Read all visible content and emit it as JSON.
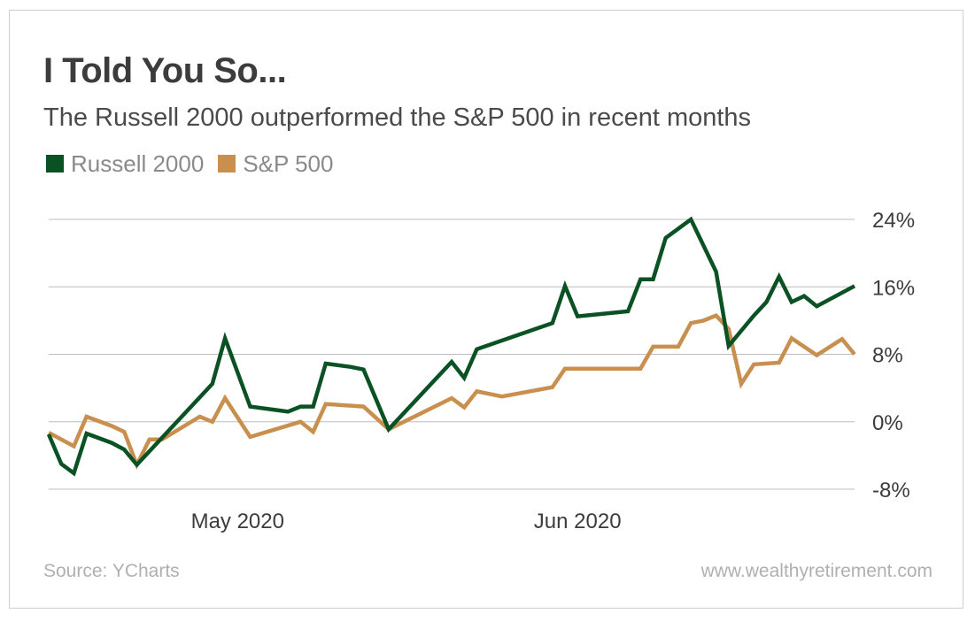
{
  "title": "I Told You So...",
  "subtitle": "The Russell 2000 outperformed the S&P 500 in recent months",
  "source": "Source: YCharts",
  "site": "www.wealthyretirement.com",
  "colors": {
    "russell": "#0a5224",
    "sp500": "#c98f4f",
    "grid": "#bdbdbd",
    "text": "#3c3c3c"
  },
  "chart_data": {
    "type": "line",
    "title": "I Told You So...",
    "subtitle": "The Russell 2000 outperformed the S&P 500 in recent months",
    "ylim": [
      -8,
      24
    ],
    "yticks": [
      24,
      16,
      8,
      0,
      -8
    ],
    "ytick_labels": [
      "24%",
      "16%",
      "8%",
      "0%",
      "-8%"
    ],
    "xlim": [
      0,
      63
    ],
    "xticks": [
      {
        "x": 15,
        "label": "May 2020"
      },
      {
        "x": 42,
        "label": "Jun 2020"
      }
    ],
    "grid": true,
    "legend": "top-left",
    "series": [
      {
        "name": "Russell 2000",
        "color": "#0a5224",
        "points": [
          [
            0,
            -1.5
          ],
          [
            1,
            -5.0
          ],
          [
            2,
            -6.1
          ],
          [
            3,
            -1.4
          ],
          [
            5,
            -2.5
          ],
          [
            6,
            -3.3
          ],
          [
            7,
            -5.1
          ],
          [
            13,
            4.5
          ],
          [
            14,
            9.9
          ],
          [
            16,
            1.8
          ],
          [
            18,
            1.4
          ],
          [
            19,
            1.2
          ],
          [
            20,
            1.8
          ],
          [
            21,
            1.8
          ],
          [
            22,
            6.9
          ],
          [
            24,
            6.5
          ],
          [
            25,
            6.2
          ],
          [
            27,
            -0.9
          ],
          [
            32,
            7.1
          ],
          [
            33,
            5.2
          ],
          [
            34,
            8.6
          ],
          [
            40,
            11.7
          ],
          [
            41,
            16.1
          ],
          [
            42,
            12.5
          ],
          [
            46,
            13.1
          ],
          [
            47,
            16.9
          ],
          [
            48,
            16.9
          ],
          [
            49,
            21.8
          ],
          [
            51,
            24.0
          ],
          [
            53,
            17.8
          ],
          [
            54,
            9.0
          ],
          [
            56,
            12.6
          ],
          [
            57,
            14.2
          ],
          [
            58,
            17.2
          ],
          [
            59,
            14.2
          ],
          [
            60,
            14.9
          ],
          [
            61,
            13.7
          ],
          [
            64,
            16.1
          ]
        ]
      },
      {
        "name": "S&P 500",
        "color": "#c98f4f",
        "points": [
          [
            0,
            -1.3
          ],
          [
            2,
            -2.9
          ],
          [
            3,
            0.6
          ],
          [
            5,
            -0.5
          ],
          [
            6,
            -1.2
          ],
          [
            7,
            -5.1
          ],
          [
            8,
            -2.1
          ],
          [
            9,
            -2.1
          ],
          [
            12,
            0.6
          ],
          [
            13,
            0.0
          ],
          [
            14,
            2.8
          ],
          [
            16,
            -1.8
          ],
          [
            20,
            0.0
          ],
          [
            21,
            -1.2
          ],
          [
            22,
            2.1
          ],
          [
            24,
            1.9
          ],
          [
            25,
            1.8
          ],
          [
            27,
            -0.9
          ],
          [
            32,
            2.8
          ],
          [
            33,
            1.7
          ],
          [
            34,
            3.6
          ],
          [
            36,
            3.0
          ],
          [
            40,
            4.1
          ],
          [
            41,
            6.3
          ],
          [
            46,
            6.3
          ],
          [
            47,
            6.3
          ],
          [
            48,
            8.9
          ],
          [
            50,
            8.9
          ],
          [
            51,
            11.7
          ],
          [
            52,
            12.0
          ],
          [
            53,
            12.6
          ],
          [
            54,
            11.0
          ],
          [
            55,
            4.5
          ],
          [
            56,
            6.8
          ],
          [
            58,
            7.0
          ],
          [
            59,
            9.9
          ],
          [
            61,
            7.9
          ],
          [
            63,
            9.8
          ],
          [
            64,
            8.0
          ]
        ]
      }
    ]
  }
}
